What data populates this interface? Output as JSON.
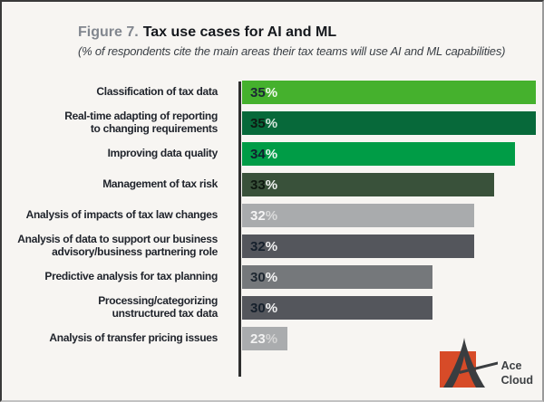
{
  "page": {
    "background_color": "#f7f5f2"
  },
  "header": {
    "figure_label": "Figure 7.",
    "title": "Tax use cases for AI and ML",
    "subtitle": "(% of respondents cite the main areas their tax teams will use AI and ML capabilities)"
  },
  "chart_data": {
    "type": "bar",
    "orientation": "horizontal",
    "title": "Figure 7. Tax use cases for AI and ML",
    "xlabel": "% of respondents",
    "xlim": [
      20.8,
      35.3
    ],
    "baseline_note": "bars are drawn from a non-zero baseline (~21%) exactly as in the source image",
    "grid": false,
    "legend": false,
    "categories": [
      "Classification of tax data",
      "Real-time adapting of reporting to changing requirements",
      "Improving data quality",
      "Management of tax risk",
      "Analysis of impacts of tax law changes",
      "Analysis of data to support our business advisory/business partnering role",
      "Predictive analysis for tax planning",
      "Processing/categorizing unstructured tax data",
      "Analysis of transfer pricing issues"
    ],
    "values": [
      35,
      35,
      34,
      33,
      32,
      32,
      30,
      30,
      23
    ],
    "rows": [
      {
        "label": "Classification of tax data",
        "value": 35,
        "unit": "%",
        "bar_color": "#45b12d",
        "num_color": "#1b2734",
        "unit_color": "#ffffff"
      },
      {
        "label": "Real-time adapting of reporting\nto changing requirements",
        "value": 35,
        "unit": "%",
        "bar_color": "#07693a",
        "num_color": "#0e1a12",
        "unit_color": "#e9f2ec"
      },
      {
        "label": "Improving data quality",
        "value": 34,
        "unit": "%",
        "bar_color": "#009c46",
        "num_color": "#10202e",
        "unit_color": "#ffffff"
      },
      {
        "label": "Management of tax risk",
        "value": 33,
        "unit": "%",
        "bar_color": "#39513a",
        "num_color": "#0e1810",
        "unit_color": "#ffffff"
      },
      {
        "label": "Analysis of impacts of tax law changes",
        "value": 32,
        "unit": "%",
        "bar_color": "#a9abad",
        "num_color": "#f4f4f4",
        "unit_color": "#dedede"
      },
      {
        "label": "Analysis of data to support our business\nadvisory/business partnering role",
        "value": 32,
        "unit": "%",
        "bar_color": "#54565c",
        "num_color": "#16202c",
        "unit_color": "#ffffff"
      },
      {
        "label": "Predictive analysis for tax planning",
        "value": 30,
        "unit": "%",
        "bar_color": "#75787b",
        "num_color": "#1d2630",
        "unit_color": "#ffffff"
      },
      {
        "label": "Processing/categorizing\nunstructured tax data",
        "value": 30,
        "unit": "%",
        "bar_color": "#54565c",
        "num_color": "#16202c",
        "unit_color": "#ffffff"
      },
      {
        "label": "Analysis of transfer pricing issues",
        "value": 23,
        "unit": "%",
        "bar_color": "#aaacae",
        "num_color": "#f2f2f2",
        "unit_color": "#d8d8d8"
      }
    ]
  },
  "logo": {
    "line1": "Ace",
    "line2": "Cloud",
    "accent_color": "#d74b28",
    "mark_color": "#3a3d40",
    "text_color": "#3d4043"
  }
}
